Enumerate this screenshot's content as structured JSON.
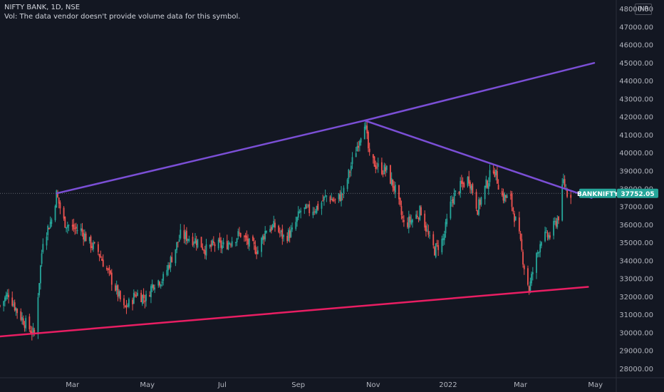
{
  "header": {
    "symbol_line": "NIFTY BANK, 1D, NSE",
    "volume_note": "Vol: The data vendor doesn't provide volume data for this symbol."
  },
  "currency": "INR",
  "colors": {
    "background": "#131722",
    "up": "#26a69a",
    "down": "#ef5350",
    "trend_purple": "#7b4fd6",
    "trend_pink": "#e91e63",
    "badge": "#26a69a",
    "axis_text": "#b2b5be"
  },
  "chart_data": {
    "type": "candlestick",
    "symbol": "BANKNIFTY",
    "last_price_label": "BANKNIFTY",
    "last_price": "37752.05",
    "last_price_value": 37752.05,
    "y_ticks": [
      "28000.00",
      "29000.00",
      "30000.00",
      "31000.00",
      "32000.00",
      "33000.00",
      "34000.00",
      "35000.00",
      "36000.00",
      "37000.00",
      "38000.00",
      "39000.00",
      "40000.00",
      "41000.00",
      "42000.00",
      "43000.00",
      "44000.00",
      "45000.00",
      "46000.00",
      "47000.00",
      "48000.00"
    ],
    "ylim": [
      27500,
      48500
    ],
    "x_ticks": [
      {
        "label": "Mar",
        "date": "2021-03-01"
      },
      {
        "label": "May",
        "date": "2021-05-01"
      },
      {
        "label": "Jul",
        "date": "2021-07-01"
      },
      {
        "label": "Sep",
        "date": "2021-09-01"
      },
      {
        "label": "Nov",
        "date": "2021-11-01"
      },
      {
        "label": "2022",
        "date": "2022-01-01"
      },
      {
        "label": "Mar",
        "date": "2022-03-01"
      },
      {
        "label": "May",
        "date": "2022-05-01"
      }
    ],
    "xlim": [
      "2021-01-01",
      "2022-05-18"
    ],
    "price_path": [
      {
        "date": "2021-01-01",
        "close": 31500
      },
      {
        "date": "2021-01-08",
        "close": 32200
      },
      {
        "date": "2021-01-15",
        "close": 31200
      },
      {
        "date": "2021-01-22",
        "close": 30500
      },
      {
        "date": "2021-01-29",
        "close": 29900
      },
      {
        "date": "2021-02-05",
        "close": 35200
      },
      {
        "date": "2021-02-12",
        "close": 36300
      },
      {
        "date": "2021-02-16",
        "close": 37700
      },
      {
        "date": "2021-02-22",
        "close": 36200
      },
      {
        "date": "2021-03-01",
        "close": 35800
      },
      {
        "date": "2021-03-08",
        "close": 35700
      },
      {
        "date": "2021-03-15",
        "close": 35000
      },
      {
        "date": "2021-03-22",
        "close": 34500
      },
      {
        "date": "2021-03-29",
        "close": 33500
      },
      {
        "date": "2021-04-05",
        "close": 32500
      },
      {
        "date": "2021-04-12",
        "close": 31300
      },
      {
        "date": "2021-04-16",
        "close": 31600
      },
      {
        "date": "2021-04-22",
        "close": 32200
      },
      {
        "date": "2021-04-30",
        "close": 31900
      },
      {
        "date": "2021-05-06",
        "close": 32800
      },
      {
        "date": "2021-05-14",
        "close": 33000
      },
      {
        "date": "2021-05-21",
        "close": 34200
      },
      {
        "date": "2021-05-28",
        "close": 35400
      },
      {
        "date": "2021-06-04",
        "close": 35300
      },
      {
        "date": "2021-06-11",
        "close": 35100
      },
      {
        "date": "2021-06-18",
        "close": 34600
      },
      {
        "date": "2021-06-25",
        "close": 34900
      },
      {
        "date": "2021-07-02",
        "close": 34800
      },
      {
        "date": "2021-07-09",
        "close": 35200
      },
      {
        "date": "2021-07-16",
        "close": 35500
      },
      {
        "date": "2021-07-23",
        "close": 34900
      },
      {
        "date": "2021-07-30",
        "close": 34600
      },
      {
        "date": "2021-08-06",
        "close": 35800
      },
      {
        "date": "2021-08-13",
        "close": 35900
      },
      {
        "date": "2021-08-20",
        "close": 35300
      },
      {
        "date": "2021-08-27",
        "close": 35600
      },
      {
        "date": "2021-09-03",
        "close": 36800
      },
      {
        "date": "2021-09-10",
        "close": 36800
      },
      {
        "date": "2021-09-17",
        "close": 37000
      },
      {
        "date": "2021-09-24",
        "close": 37600
      },
      {
        "date": "2021-10-01",
        "close": 37300
      },
      {
        "date": "2021-10-08",
        "close": 37800
      },
      {
        "date": "2021-10-14",
        "close": 39300
      },
      {
        "date": "2021-10-19",
        "close": 40400
      },
      {
        "date": "2021-10-25",
        "close": 41800
      },
      {
        "date": "2021-10-29",
        "close": 39700
      },
      {
        "date": "2021-11-05",
        "close": 39200
      },
      {
        "date": "2021-11-12",
        "close": 39000
      },
      {
        "date": "2021-11-19",
        "close": 37900
      },
      {
        "date": "2021-11-26",
        "close": 36000
      },
      {
        "date": "2021-12-03",
        "close": 36300
      },
      {
        "date": "2021-12-10",
        "close": 36800
      },
      {
        "date": "2021-12-17",
        "close": 35100
      },
      {
        "date": "2021-12-21",
        "close": 34600
      },
      {
        "date": "2021-12-28",
        "close": 35200
      },
      {
        "date": "2022-01-04",
        "close": 37400
      },
      {
        "date": "2022-01-11",
        "close": 38100
      },
      {
        "date": "2022-01-18",
        "close": 38600
      },
      {
        "date": "2022-01-25",
        "close": 36900
      },
      {
        "date": "2022-02-01",
        "close": 38200
      },
      {
        "date": "2022-02-07",
        "close": 39200
      },
      {
        "date": "2022-02-14",
        "close": 37600
      },
      {
        "date": "2022-02-21",
        "close": 37400
      },
      {
        "date": "2022-02-28",
        "close": 35300
      },
      {
        "date": "2022-03-04",
        "close": 33700
      },
      {
        "date": "2022-03-08",
        "close": 32400
      },
      {
        "date": "2022-03-11",
        "close": 33400
      },
      {
        "date": "2022-03-18",
        "close": 35300
      },
      {
        "date": "2022-03-25",
        "close": 35400
      },
      {
        "date": "2022-04-01",
        "close": 36500
      },
      {
        "date": "2022-04-05",
        "close": 38400
      },
      {
        "date": "2022-04-08",
        "close": 37800
      },
      {
        "date": "2022-04-12",
        "close": 37752
      }
    ],
    "trendlines": [
      {
        "name": "upper-rising",
        "color": "#7b4fd6",
        "points": [
          {
            "date": "2021-02-16",
            "value": 37750
          },
          {
            "date": "2021-10-25",
            "value": 41800
          },
          {
            "date": "2022-04-30",
            "value": 45000
          }
        ]
      },
      {
        "name": "upper-falling",
        "color": "#7b4fd6",
        "points": [
          {
            "date": "2021-10-25",
            "value": 41800
          },
          {
            "date": "2022-04-28",
            "value": 37500
          }
        ]
      },
      {
        "name": "lower-support",
        "color": "#e91e63",
        "points": [
          {
            "date": "2021-01-01",
            "value": 29800
          },
          {
            "date": "2022-04-25",
            "value": 32550
          }
        ]
      }
    ],
    "grid": false,
    "legend": "none"
  }
}
